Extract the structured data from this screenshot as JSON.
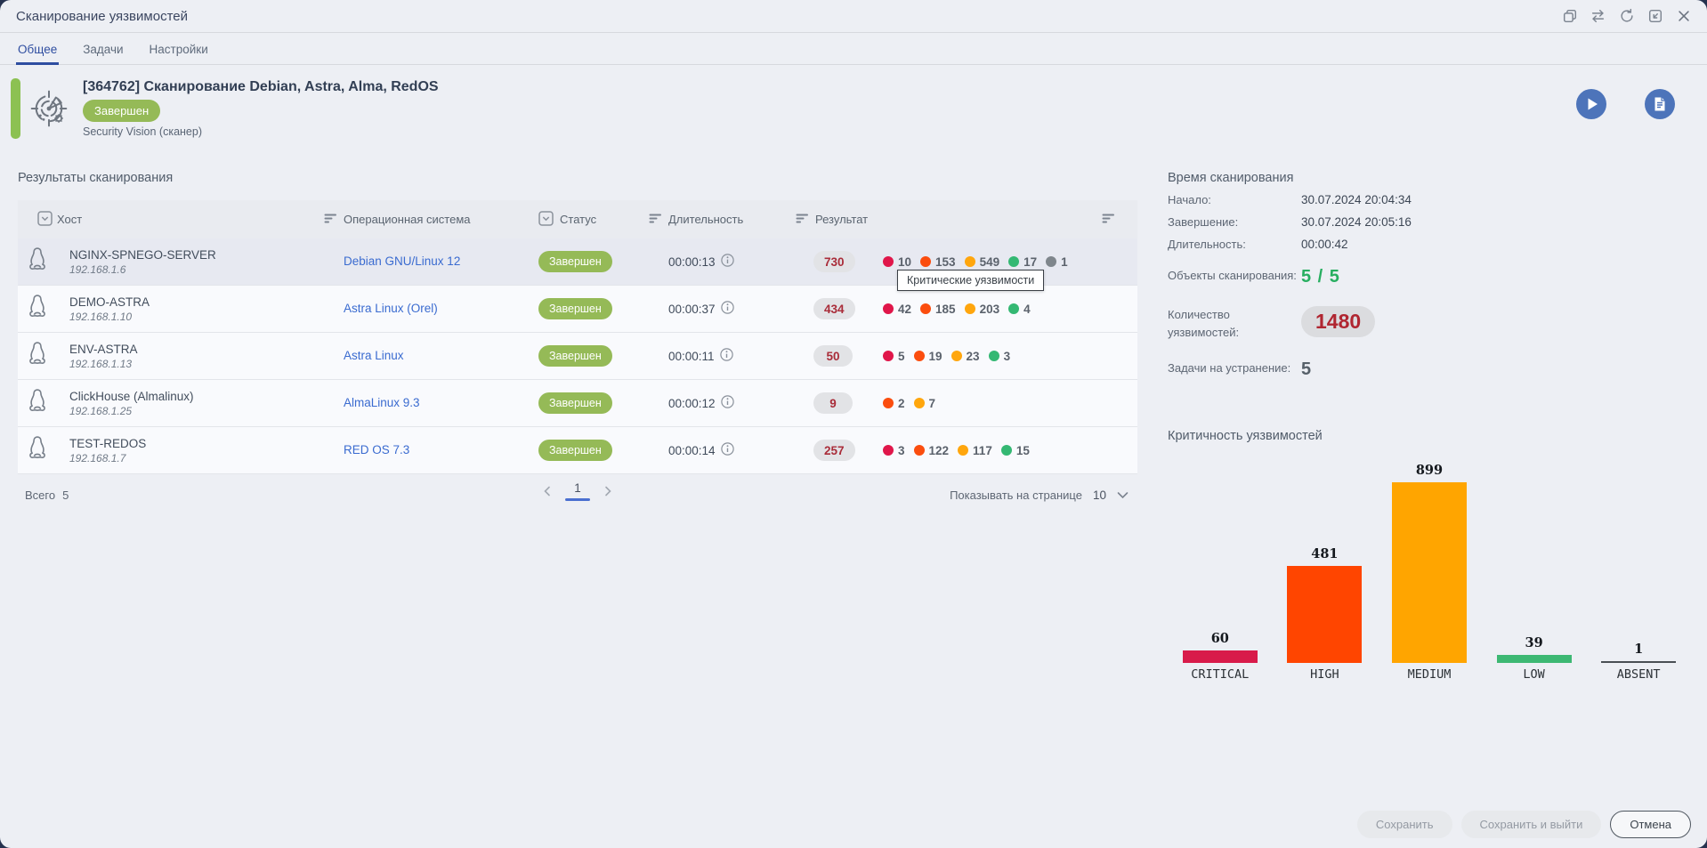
{
  "window": {
    "title": "Сканирование уязвимостей",
    "icons": [
      "copy-icon",
      "swap-icon",
      "refresh-icon",
      "scale-window-icon",
      "close-icon"
    ]
  },
  "tabs": {
    "items": [
      {
        "label": "Общее",
        "active": true
      },
      {
        "label": "Задачи",
        "active": false
      },
      {
        "label": "Настройки",
        "active": false
      }
    ]
  },
  "header": {
    "title": "[364762] Сканирование Debian, Astra, Alma, RedOS",
    "status": "Завершен",
    "subtitle": "Security Vision (сканер)",
    "actions": [
      "play-icon",
      "report-icon"
    ]
  },
  "results": {
    "section_title": "Результаты сканирования",
    "columns": {
      "host": "Хост",
      "os": "Операционная система",
      "status": "Статус",
      "duration": "Длительность",
      "result": "Результат"
    },
    "rows": [
      {
        "host": "NGINX-SPNEGO-SERVER",
        "ip": "192.168.1.6",
        "os": "Debian GNU/Linux 12",
        "status": "Завершен",
        "duration": "00:00:13",
        "total": "730",
        "severities": [
          {
            "color": "#e0164a",
            "count": "10"
          },
          {
            "color": "#fb4d0e",
            "count": "153"
          },
          {
            "color": "#ffa60d",
            "count": "549"
          },
          {
            "color": "#34b873",
            "count": "17"
          },
          {
            "color": "#7f868c",
            "count": "1"
          }
        ]
      },
      {
        "host": "DEMO-ASTRA",
        "ip": "192.168.1.10",
        "os": "Astra Linux (Orel)",
        "status": "Завершен",
        "duration": "00:00:37",
        "total": "434",
        "severities": [
          {
            "color": "#e0164a",
            "count": "42"
          },
          {
            "color": "#fb4d0e",
            "count": "185"
          },
          {
            "color": "#ffa60d",
            "count": "203"
          },
          {
            "color": "#34b873",
            "count": "4"
          }
        ]
      },
      {
        "host": "ENV-ASTRA",
        "ip": "192.168.1.13",
        "os": "Astra Linux",
        "status": "Завершен",
        "duration": "00:00:11",
        "total": "50",
        "severities": [
          {
            "color": "#e0164a",
            "count": "5"
          },
          {
            "color": "#fb4d0e",
            "count": "19"
          },
          {
            "color": "#ffa60d",
            "count": "23"
          },
          {
            "color": "#34b873",
            "count": "3"
          }
        ]
      },
      {
        "host": "ClickHouse (Almalinux)",
        "ip": "192.168.1.25",
        "os": "AlmaLinux 9.3",
        "status": "Завершен",
        "duration": "00:00:12",
        "total": "9",
        "severities": [
          {
            "color": "#fb4d0e",
            "count": "2"
          },
          {
            "color": "#ffa60d",
            "count": "7"
          }
        ]
      },
      {
        "host": "TEST-REDOS",
        "ip": "192.168.1.7",
        "os": "RED OS 7.3",
        "status": "Завершен",
        "duration": "00:00:14",
        "total": "257",
        "severities": [
          {
            "color": "#e0164a",
            "count": "3"
          },
          {
            "color": "#fb4d0e",
            "count": "122"
          },
          {
            "color": "#ffa60d",
            "count": "117"
          },
          {
            "color": "#34b873",
            "count": "15"
          }
        ]
      }
    ],
    "tooltip": "Критические уязвимости",
    "pagination": {
      "total_label": "Всего",
      "total": "5",
      "page": "1",
      "per_page_label": "Показывать на странице",
      "per_page": "10"
    }
  },
  "sidebar": {
    "time": {
      "title": "Время сканирования",
      "rows": [
        {
          "k": "Начало:",
          "v": "30.07.2024 20:04:34"
        },
        {
          "k": "Завершение:",
          "v": "30.07.2024 20:05:16"
        },
        {
          "k": "Длительность:",
          "v": "00:00:42"
        }
      ]
    },
    "stats": [
      {
        "label": "Объекты сканирования:",
        "value": "5 / 5",
        "style": "green"
      },
      {
        "label": "Количество уязвимостей:",
        "value": "1480",
        "style": "pill"
      },
      {
        "label": "Задачи на устранение:",
        "value": "5",
        "style": "plain"
      }
    ],
    "chart_title": "Критичность уязвимостей"
  },
  "chart_data": {
    "type": "bar",
    "title": "Критичность уязвимостей",
    "categories": [
      "CRITICAL",
      "HIGH",
      "MEDIUM",
      "LOW",
      "ABSENT"
    ],
    "values": [
      60,
      481,
      899,
      39,
      1
    ],
    "colors": [
      "#d81b4a",
      "#ff4500",
      "#ffa500",
      "#3db873",
      "#4a4f54"
    ],
    "xlabel": "",
    "ylabel": "",
    "ylim": [
      0,
      899
    ],
    "grid": false,
    "legend": "none",
    "value_labels": "above bars"
  },
  "footer": {
    "save": "Сохранить",
    "save_exit": "Сохранить и выйти",
    "cancel": "Отмена"
  },
  "colors": {
    "accent_blue": "#2e4da0",
    "accent_green": "#8cc152",
    "status_green": "#95ba57",
    "link_blue": "#3a6bd0",
    "total_badge_text": "#a92c39",
    "vuln_count_text": "#b02631",
    "objects_value_green": "#27ae60",
    "circle_button_blue": "#4d74ba"
  }
}
